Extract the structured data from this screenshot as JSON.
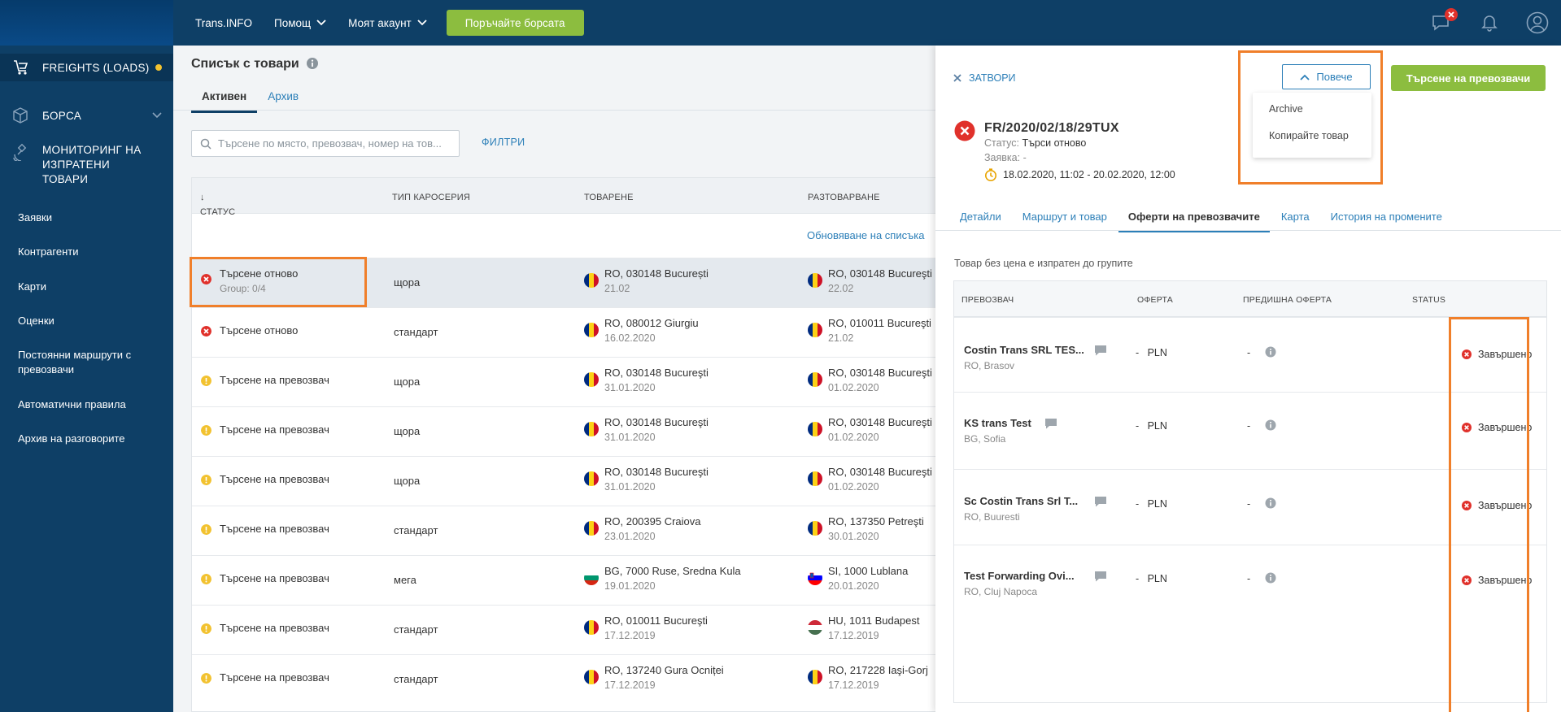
{
  "topbar": {
    "site": "Trans.INFO",
    "help": "Помощ",
    "account": "Моят акаунт",
    "order_button": "Поръчайте борсата",
    "messages_badge": "",
    "accent_green": "#8cbd3f",
    "bar_color": "#0e3f66"
  },
  "sidebar": {
    "main": [
      {
        "label": "FREIGHTS (LOADS)",
        "icon": "cart-icon",
        "active": true
      },
      {
        "label": "БОРСА",
        "icon": "box-icon"
      },
      {
        "label": "МОНИТОРИНГ НА ИЗПРАТЕНИ ТОВАРИ",
        "icon": "satellite-icon"
      }
    ],
    "sub": [
      "Заявки",
      "Контрагенти",
      "Карти",
      "Оценки",
      "Постоянни маршрути с превозвачи",
      "Автоматични правила",
      "Архив на разговорите"
    ]
  },
  "list": {
    "title": "Списък с товари",
    "tabs": [
      "Активен",
      "Архив"
    ],
    "search_placeholder": "Търсене по място, превозвач, номер на тов...",
    "filters": "ФИЛТРИ",
    "refresh": "Обновяване на списъка",
    "columns": [
      "СТАТУС",
      "ТИП КАРОСЕРИЯ",
      "ТОВАРЕНЕ",
      "РАЗТОВАРВАНЕ"
    ],
    "rows": [
      {
        "status": "Търсене отново",
        "group": "Group: 0/4",
        "state": "error",
        "body": "щора",
        "load": "RO, 030148 București",
        "load_date": "21.02",
        "load_flag": "ro",
        "unload": "RO, 030148 Bucureşti",
        "unload_date": "22.02",
        "unload_flag": "ro"
      },
      {
        "status": "Търсене отново",
        "group": "",
        "state": "error",
        "body": "стандарт",
        "load": "RO, 080012 Giurgiu",
        "load_date": "16.02.2020",
        "load_flag": "ro",
        "unload": "RO, 010011 Bucureşti",
        "unload_date": "21.02",
        "unload_flag": "ro"
      },
      {
        "status": "Търсене на превозвач",
        "group": "",
        "state": "warning",
        "body": "щора",
        "load": "RO, 030148 Bucureşti",
        "load_date": "31.01.2020",
        "load_flag": "ro",
        "unload": "RO, 030148 Bucureşti",
        "unload_date": "01.02.2020",
        "unload_flag": "ro"
      },
      {
        "status": "Търсене на превозвач",
        "group": "",
        "state": "warning",
        "body": "щора",
        "load": "RO, 030148 Bucureşti",
        "load_date": "31.01.2020",
        "load_flag": "ro",
        "unload": "RO, 030148 Bucureşti",
        "unload_date": "01.02.2020",
        "unload_flag": "ro"
      },
      {
        "status": "Търсене на превозвач",
        "group": "",
        "state": "warning",
        "body": "щора",
        "load": "RO, 030148 Bucureşti",
        "load_date": "31.01.2020",
        "load_flag": "ro",
        "unload": "RO, 030148 Bucureşti",
        "unload_date": "01.02.2020",
        "unload_flag": "ro"
      },
      {
        "status": "Търсене на превозвач",
        "group": "",
        "state": "warning",
        "body": "стандарт",
        "load": "RO, 200395 Craiova",
        "load_date": "23.01.2020",
        "load_flag": "ro",
        "unload": "RO, 137350 Petreşti",
        "unload_date": "30.01.2020",
        "unload_flag": "ro"
      },
      {
        "status": "Търсене на превозвач",
        "group": "",
        "state": "warning",
        "body": "мега",
        "load": "BG, 7000 Ruse, Sredna Kula",
        "load_date": "19.01.2020",
        "load_flag": "bg",
        "unload": "SI, 1000 Lublana",
        "unload_date": "20.01.2020",
        "unload_flag": "si"
      },
      {
        "status": "Търсене на превозвач",
        "group": "",
        "state": "warning",
        "body": "стандарт",
        "load": "RO, 010011 Bucureşti",
        "load_date": "17.12.2019",
        "load_flag": "ro",
        "unload": "HU, 1011 Budapest",
        "unload_date": "17.12.2019",
        "unload_flag": "hu"
      },
      {
        "status": "Търсене на превозвач",
        "group": "",
        "state": "warning",
        "body": "стандарт",
        "load": "RO, 137240 Gura Ocniței",
        "load_date": "17.12.2019",
        "load_flag": "ro",
        "unload": "RO, 217228 Iaşi-Gorj",
        "unload_date": "17.12.2019",
        "unload_flag": "ro"
      }
    ]
  },
  "panel": {
    "close": "ЗАТВОРИ",
    "more": "Повече",
    "dropdown": [
      "Archive",
      "Копирайте товар"
    ],
    "search_carriers": "Търсене на превозвачи",
    "freight_id": "FR/2020/02/18/29TUX",
    "status_label": "Статус:",
    "status_value": "Търси отново",
    "order_label": "Заявка:",
    "order_value": "-",
    "dates": "18.02.2020, 11:02 - 20.02.2020, 12:00",
    "tabs": [
      "Детайли",
      "Маршрут и товар",
      "Оферти на превозвачите",
      "Карта",
      "История на промените"
    ],
    "active_tab": 2,
    "note": "Товар без цена е изпратен до групите",
    "offer_columns": [
      "ПРЕВОЗВАЧ",
      "ОФЕРТА",
      "ПРЕДИШНА ОФЕРТА",
      "STATUS"
    ],
    "offers": [
      {
        "carrier": "Costin Trans SRL TES...",
        "location": "RO, Brasov",
        "offer": "-",
        "currency": "PLN",
        "previous": "-",
        "status": "Завършено"
      },
      {
        "carrier": "KS trans Test",
        "location": "BG, Sofia",
        "offer": "-",
        "currency": "PLN",
        "previous": "-",
        "status": "Завършено"
      },
      {
        "carrier": "Sc Costin Trans Srl T...",
        "location": "RO, Buuresti",
        "offer": "-",
        "currency": "PLN",
        "previous": "-",
        "status": "Завършено"
      },
      {
        "carrier": "Test Forwarding Ovi...",
        "location": "RO, Cluj Napoca",
        "offer": "-",
        "currency": "PLN",
        "previous": "-",
        "status": "Завършено"
      }
    ]
  },
  "colors": {
    "error": "#e0312b",
    "warning": "#f2c230",
    "link": "#2c7fb8",
    "highlight": "#f07f2a"
  }
}
